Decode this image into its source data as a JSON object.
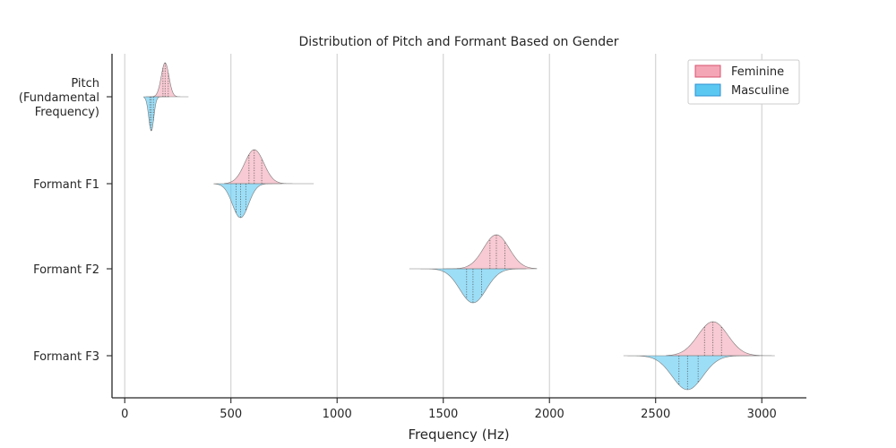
{
  "chart_data": {
    "type": "violin",
    "title": "Distribution of Pitch and Formant Based on Gender",
    "xlabel": "Frequency (Hz)",
    "ylabel": "",
    "xlim": [
      -60,
      3210
    ],
    "xticks": [
      0,
      500,
      1000,
      1500,
      2000,
      2500,
      3000
    ],
    "xtick_labels": [
      "0",
      "500",
      "1000",
      "1500",
      "2000",
      "2500",
      "3000"
    ],
    "grid": "vertical",
    "categories": [
      [
        "Pitch",
        "(Fundamental",
        "Frequency)"
      ],
      [
        "Formant F1"
      ],
      [
        "Formant F2"
      ],
      [
        "Formant F3"
      ]
    ],
    "legend": {
      "position": "top-right"
    },
    "series": [
      {
        "name": "Feminine",
        "color": "#f4a6b6",
        "edge": "#d9536f",
        "side": "upper",
        "stats": [
          {
            "min": 100,
            "max": 300,
            "median": 190,
            "q1": 180,
            "q3": 205,
            "sd": 18
          },
          {
            "min": 470,
            "max": 890,
            "median": 610,
            "q1": 585,
            "q3": 645,
            "sd": 45
          },
          {
            "min": 1500,
            "max": 1940,
            "median": 1750,
            "q1": 1720,
            "q3": 1790,
            "sd": 60
          },
          {
            "min": 2550,
            "max": 3060,
            "median": 2770,
            "q1": 2730,
            "q3": 2810,
            "sd": 70
          }
        ]
      },
      {
        "name": "Masculine",
        "color": "#5bc8f2",
        "edge": "#2f8fd0",
        "side": "lower",
        "stats": [
          {
            "min": 90,
            "max": 210,
            "median": 125,
            "q1": 118,
            "q3": 135,
            "sd": 12
          },
          {
            "min": 420,
            "max": 740,
            "median": 545,
            "q1": 525,
            "q3": 570,
            "sd": 38
          },
          {
            "min": 1340,
            "max": 1890,
            "median": 1640,
            "q1": 1610,
            "q3": 1680,
            "sd": 62
          },
          {
            "min": 2350,
            "max": 2990,
            "median": 2650,
            "q1": 2610,
            "q3": 2700,
            "sd": 72
          }
        ]
      }
    ]
  }
}
